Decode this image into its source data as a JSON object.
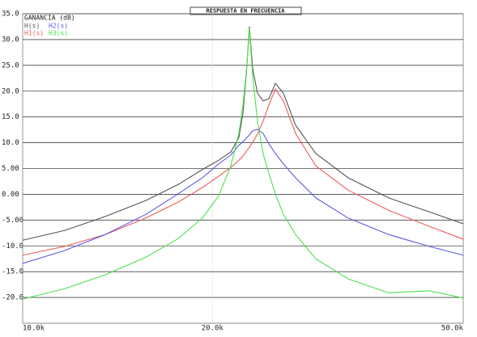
{
  "chart_data": {
    "type": "line",
    "title": "RESPUESTA EN FRECUENCIA",
    "y_label": "GANANCIA (dB)",
    "x_log": true,
    "grid": true,
    "x": [
      10.0,
      11.66,
      13.52,
      15.68,
      17.65,
      19.28,
      20.46,
      21.39,
      22.03,
      22.36,
      22.69,
      22.89,
      23.17,
      23.58,
      24.07,
      24.58,
      25.17,
      25.92,
      27.1,
      29.18,
      32.84,
      38.08,
      44.15,
      50.0
    ],
    "series": [
      {
        "name": "H(s)",
        "color": "#555555",
        "values": [
          -8.9,
          -7.0,
          -4.3,
          -1.2,
          1.9,
          4.8,
          6.6,
          8.2,
          11.0,
          15.7,
          25.1,
          32.5,
          24.3,
          19.6,
          18.1,
          18.5,
          21.5,
          19.6,
          13.4,
          7.9,
          3.2,
          -0.7,
          -3.4,
          -5.7
        ]
      },
      {
        "name": "H1(s)",
        "color": "#f05a5a",
        "values": [
          -11.8,
          -10.1,
          -7.8,
          -4.6,
          -1.5,
          1.3,
          3.5,
          5.2,
          6.6,
          7.4,
          8.5,
          9.1,
          10.1,
          11.7,
          14.2,
          17.3,
          20.4,
          18.1,
          11.8,
          5.5,
          0.8,
          -3.1,
          -6.2,
          -8.7
        ]
      },
      {
        "name": "H2(s)",
        "color": "#5a5ae6",
        "values": [
          -13.4,
          -10.9,
          -7.8,
          -3.9,
          0.1,
          3.2,
          5.9,
          7.6,
          9.5,
          10.2,
          11.0,
          11.5,
          12.3,
          12.6,
          11.8,
          9.8,
          7.9,
          5.9,
          3.2,
          -0.7,
          -4.6,
          -7.8,
          -10.1,
          -11.8
        ]
      },
      {
        "name": "H3(s)",
        "color": "#4ee04e",
        "values": [
          -20.3,
          -18.3,
          -15.6,
          -12.2,
          -8.6,
          -4.6,
          -0.3,
          5.5,
          11.8,
          17.3,
          25.1,
          32.2,
          22.8,
          14.2,
          7.9,
          4.0,
          0.1,
          -3.9,
          -7.8,
          -12.5,
          -16.4,
          -19.1,
          -18.7,
          -20.1
        ]
      }
    ],
    "xlim": [
      10,
      50
    ],
    "xticks": [
      {
        "value": 10,
        "label": "10.0k"
      },
      {
        "value": 20,
        "label": "20.0k"
      },
      {
        "value": 50,
        "label": "50.0k"
      }
    ],
    "ylim": [
      -25,
      35
    ],
    "yticks": [
      {
        "value": 35,
        "label": "35.0"
      },
      {
        "value": 30,
        "label": "30.0"
      },
      {
        "value": 25,
        "label": "25.0"
      },
      {
        "value": 20,
        "label": "20.0"
      },
      {
        "value": 15,
        "label": "15.0"
      },
      {
        "value": 10,
        "label": "10.0"
      },
      {
        "value": 5,
        "label": "5.00"
      },
      {
        "value": 0,
        "label": "0.00"
      },
      {
        "value": -5,
        "label": "-5.00"
      },
      {
        "value": -10,
        "label": "-10.0"
      },
      {
        "value": -15,
        "label": "-15.0"
      },
      {
        "value": -20,
        "label": "-20.0"
      }
    ]
  }
}
